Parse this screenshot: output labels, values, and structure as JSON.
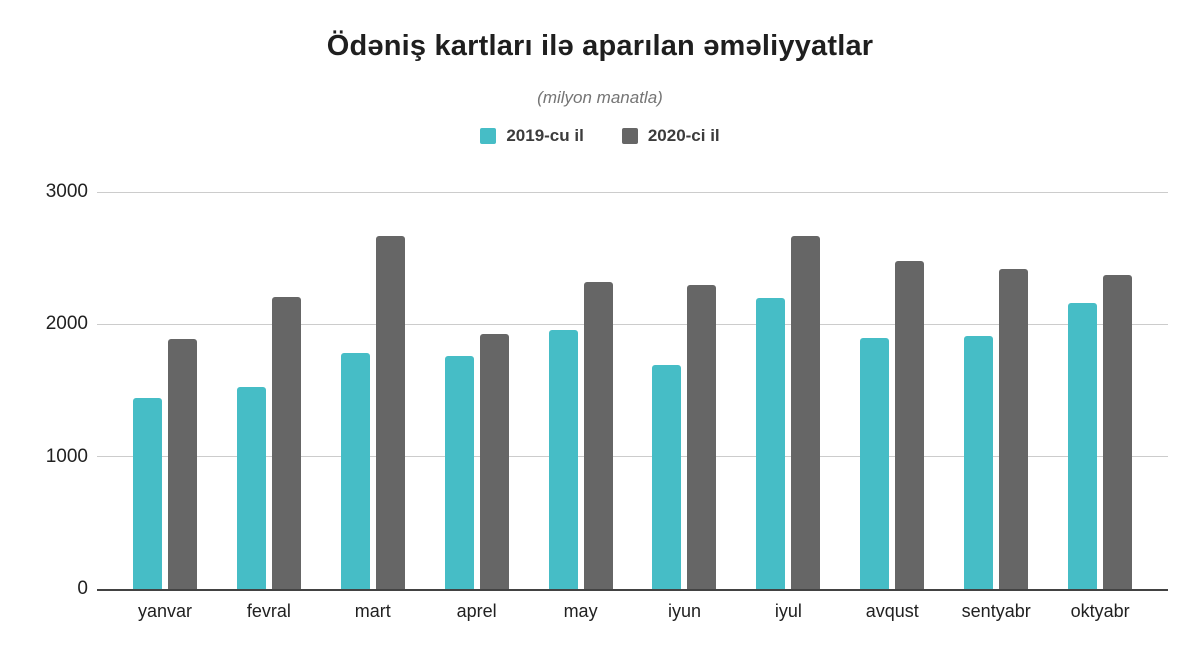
{
  "chart_data": {
    "type": "bar",
    "title": "Ödəniş kartları ilə aparılan əməliyyatlar",
    "subtitle": "(milyon manatla)",
    "categories": [
      "yanvar",
      "fevral",
      "mart",
      "aprel",
      "may",
      "iyun",
      "iyul",
      "avqust",
      "sentyabr",
      "oktyabr"
    ],
    "series": [
      {
        "name": "2019-cu il",
        "color": "#46BDC6",
        "values": [
          1440,
          1530,
          1780,
          1760,
          1960,
          1690,
          2200,
          1900,
          1910,
          2160
        ]
      },
      {
        "name": "2020-ci il",
        "color": "#666666",
        "values": [
          1890,
          2210,
          2670,
          1930,
          2320,
          2300,
          2670,
          2480,
          2420,
          2370
        ]
      }
    ],
    "ylim": [
      0,
      3000
    ],
    "yticks": [
      0,
      1000,
      2000,
      3000
    ],
    "grid": true,
    "legend_position": "top",
    "xlabel": "",
    "ylabel": "",
    "colors": {
      "axis_line": "#424242",
      "gridline": "#cccccc",
      "title_text": "#1f1f1f",
      "subtitle_text": "#757575",
      "tick_text": "#212121",
      "legend_text": "#3c3c3c"
    }
  }
}
